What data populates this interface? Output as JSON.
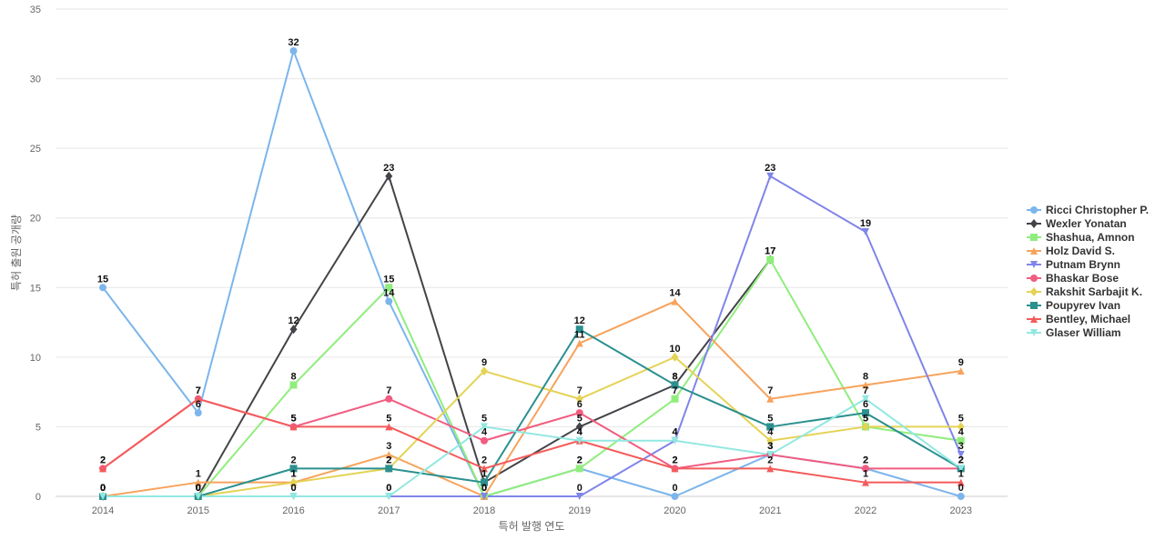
{
  "chart_data": {
    "type": "line",
    "title": "",
    "xlabel": "특허 발행 연도",
    "ylabel": "특허 출원 공개량",
    "categories": [
      "2014",
      "2015",
      "2016",
      "2017",
      "2018",
      "2019",
      "2020",
      "2021",
      "2022",
      "2023"
    ],
    "ylim": [
      0,
      35
    ],
    "yticks": [
      0,
      5,
      10,
      15,
      20,
      25,
      30,
      35
    ],
    "grid": true,
    "legend_position": "right",
    "series": [
      {
        "name": "Ricci Christopher P.",
        "color": "#7cb5ec",
        "marker": "circle",
        "values": [
          15,
          6,
          32,
          14,
          0,
          2,
          0,
          3,
          2,
          0
        ]
      },
      {
        "name": "Wexler Yonatan",
        "color": "#434348",
        "marker": "diamond",
        "values": [
          0,
          0,
          12,
          23,
          1,
          5,
          8,
          17,
          null,
          null
        ]
      },
      {
        "name": "Shashua, Amnon",
        "color": "#90ed7d",
        "marker": "square",
        "values": [
          0,
          0,
          8,
          15,
          0,
          2,
          7,
          17,
          5,
          4
        ]
      },
      {
        "name": "Holz David S.",
        "color": "#f7a35c",
        "marker": "triangle",
        "values": [
          0,
          1,
          1,
          3,
          0,
          11,
          14,
          7,
          8,
          9
        ]
      },
      {
        "name": "Putnam Brynn",
        "color": "#8085e9",
        "marker": "triangle-down",
        "values": [
          0,
          0,
          0,
          0,
          0,
          0,
          4,
          23,
          19,
          3
        ]
      },
      {
        "name": "Bhaskar Bose",
        "color": "#f15c80",
        "marker": "circle",
        "values": [
          2,
          7,
          5,
          7,
          4,
          6,
          2,
          3,
          2,
          2
        ]
      },
      {
        "name": "Rakshit Sarbajit K.",
        "color": "#e4d354",
        "marker": "diamond",
        "values": [
          0,
          0,
          1,
          2,
          9,
          7,
          10,
          4,
          5,
          5
        ]
      },
      {
        "name": "Poupyrev Ivan",
        "color": "#2b908f",
        "marker": "square",
        "values": [
          0,
          0,
          2,
          2,
          1,
          12,
          8,
          5,
          6,
          2
        ]
      },
      {
        "name": "Bentley, Michael",
        "color": "#f45b5b",
        "marker": "triangle",
        "values": [
          2,
          7,
          5,
          5,
          2,
          4,
          2,
          2,
          1,
          1
        ]
      },
      {
        "name": "Glaser William",
        "color": "#91e8e1",
        "marker": "triangle-down",
        "values": [
          0,
          0,
          0,
          0,
          5,
          4,
          4,
          3,
          7,
          2
        ]
      }
    ]
  }
}
